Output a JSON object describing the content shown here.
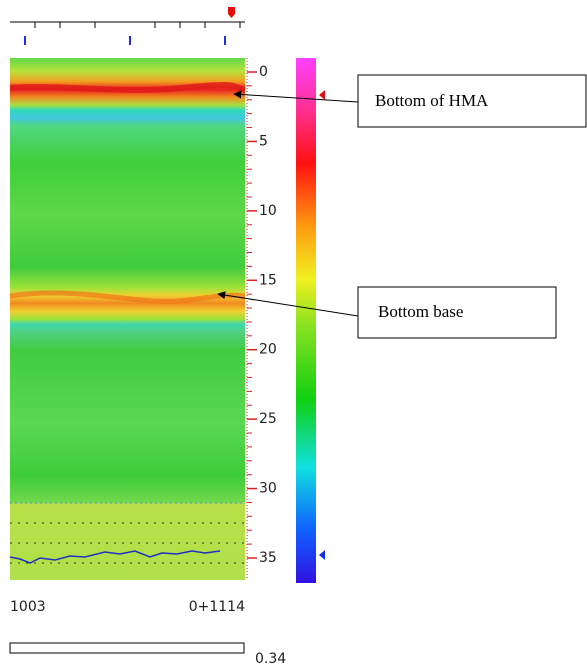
{
  "depth_ticks": [
    0,
    5,
    10,
    15,
    20,
    25,
    30,
    35
  ],
  "distance_start": "1003",
  "distance_end": "0+1114",
  "scale_value": "0.34",
  "annotations": [
    "Bottom of HMA",
    "Bottom base"
  ]
}
